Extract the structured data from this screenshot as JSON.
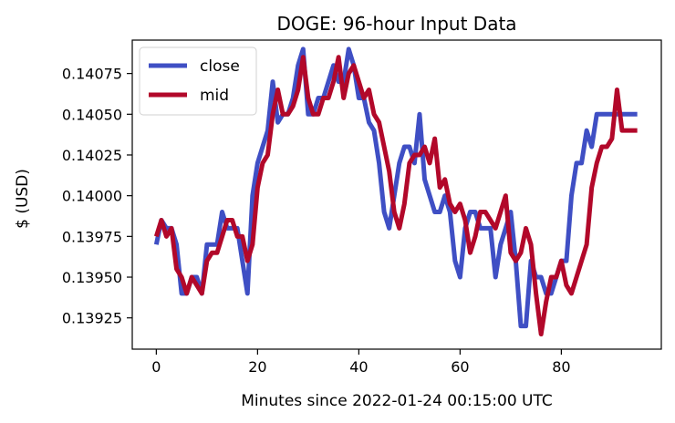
{
  "chart_data": {
    "type": "line",
    "title": "DOGE: 96-hour Input Data",
    "xlabel": "Minutes since 2022-01-24 00:15:00 UTC",
    "ylabel": "$ (USD)",
    "xlim": [
      -4.75,
      99.75
    ],
    "ylim": [
      0.139058,
      0.140955
    ],
    "xticks": [
      0,
      20,
      40,
      60,
      80
    ],
    "yticks": [
      0.13925,
      0.1395,
      0.13975,
      0.14,
      0.14025,
      0.1405,
      0.14075
    ],
    "ytick_labels": [
      "0.13925",
      "0.13950",
      "0.13975",
      "0.14000",
      "0.14025",
      "0.14050",
      "0.14075"
    ],
    "grid": false,
    "legend": "top-left",
    "series": [
      {
        "name": "close",
        "color": "#3f4fc4",
        "x": [
          0,
          1,
          2,
          3,
          4,
          5,
          6,
          7,
          8,
          9,
          10,
          11,
          12,
          13,
          14,
          15,
          16,
          17,
          18,
          19,
          20,
          21,
          22,
          23,
          24,
          25,
          26,
          27,
          28,
          29,
          30,
          31,
          32,
          33,
          34,
          35,
          36,
          37,
          38,
          39,
          40,
          41,
          42,
          43,
          44,
          45,
          46,
          47,
          48,
          49,
          50,
          51,
          52,
          53,
          54,
          55,
          56,
          57,
          58,
          59,
          60,
          61,
          62,
          63,
          64,
          65,
          66,
          67,
          68,
          69,
          70,
          71,
          72,
          73,
          74,
          75,
          76,
          77,
          78,
          79,
          80,
          81,
          82,
          83,
          84,
          85,
          86,
          87,
          88,
          89,
          90,
          91,
          92,
          93,
          94,
          95
        ],
        "y": [
          0.1397,
          0.13985,
          0.1398,
          0.1398,
          0.1397,
          0.1394,
          0.1394,
          0.1395,
          0.1395,
          0.1394,
          0.1397,
          0.1397,
          0.1397,
          0.1399,
          0.1398,
          0.1398,
          0.1398,
          0.1396,
          0.1394,
          0.14,
          0.1402,
          0.1403,
          0.1404,
          0.1407,
          0.14045,
          0.1405,
          0.1405,
          0.1406,
          0.1408,
          0.1409,
          0.1405,
          0.1405,
          0.1406,
          0.1406,
          0.1407,
          0.1408,
          0.1407,
          0.1407,
          0.1409,
          0.1408,
          0.1406,
          0.1406,
          0.14045,
          0.1404,
          0.1402,
          0.1399,
          0.1398,
          0.14,
          0.1402,
          0.1403,
          0.1403,
          0.1402,
          0.1405,
          0.1401,
          0.14,
          0.1399,
          0.1399,
          0.14,
          0.1399,
          0.1396,
          0.1395,
          0.1398,
          0.1399,
          0.1399,
          0.1398,
          0.1398,
          0.1398,
          0.1395,
          0.1397,
          0.1398,
          0.1399,
          0.1396,
          0.1392,
          0.1392,
          0.1396,
          0.1395,
          0.1395,
          0.1394,
          0.1394,
          0.1395,
          0.1396,
          0.1396,
          0.14,
          0.1402,
          0.1402,
          0.1404,
          0.1403,
          0.1405,
          0.1405,
          0.1405,
          0.1405,
          0.1405,
          0.1405,
          0.1405,
          0.1405,
          0.1405
        ]
      },
      {
        "name": "mid",
        "color": "#b2082a",
        "x": [
          0,
          1,
          2,
          3,
          4,
          5,
          6,
          7,
          8,
          9,
          10,
          11,
          12,
          13,
          14,
          15,
          16,
          17,
          18,
          19,
          20,
          21,
          22,
          23,
          24,
          25,
          26,
          27,
          28,
          29,
          30,
          31,
          32,
          33,
          34,
          35,
          36,
          37,
          38,
          39,
          40,
          41,
          42,
          43,
          44,
          45,
          46,
          47,
          48,
          49,
          50,
          51,
          52,
          53,
          54,
          55,
          56,
          57,
          58,
          59,
          60,
          61,
          62,
          63,
          64,
          65,
          66,
          67,
          68,
          69,
          70,
          71,
          72,
          73,
          74,
          75,
          76,
          77,
          78,
          79,
          80,
          81,
          82,
          83,
          84,
          85,
          86,
          87,
          88,
          89,
          90,
          91,
          92,
          93,
          94,
          95
        ],
        "y": [
          0.13975,
          0.13985,
          0.13975,
          0.1398,
          0.13955,
          0.1395,
          0.1394,
          0.1395,
          0.13945,
          0.1394,
          0.1396,
          0.13965,
          0.13965,
          0.13975,
          0.13985,
          0.13985,
          0.13975,
          0.13975,
          0.1396,
          0.1397,
          0.14005,
          0.1402,
          0.14025,
          0.1405,
          0.14065,
          0.1405,
          0.1405,
          0.14055,
          0.14065,
          0.14085,
          0.1406,
          0.1405,
          0.1405,
          0.1406,
          0.1406,
          0.1407,
          0.14085,
          0.1406,
          0.14075,
          0.1408,
          0.1407,
          0.1406,
          0.14065,
          0.1405,
          0.14045,
          0.1403,
          0.14015,
          0.1399,
          0.1398,
          0.13995,
          0.1402,
          0.14025,
          0.14025,
          0.1403,
          0.1402,
          0.14035,
          0.14005,
          0.1401,
          0.13995,
          0.1399,
          0.13995,
          0.13985,
          0.13965,
          0.13975,
          0.1399,
          0.1399,
          0.13985,
          0.1398,
          0.1399,
          0.14,
          0.13965,
          0.1396,
          0.13965,
          0.1398,
          0.1397,
          0.1394,
          0.13915,
          0.13935,
          0.1395,
          0.1395,
          0.1396,
          0.13945,
          0.1394,
          0.1395,
          0.1396,
          0.1397,
          0.14005,
          0.1402,
          0.1403,
          0.1403,
          0.14035,
          0.14065,
          0.1404,
          0.1404,
          0.1404,
          0.1404
        ]
      }
    ]
  }
}
